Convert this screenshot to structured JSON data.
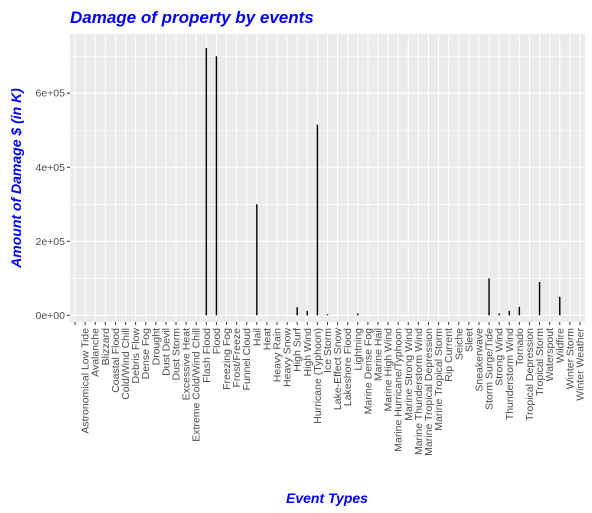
{
  "chart_data": {
    "type": "bar",
    "title": "Damage of property by events",
    "xlabel": "Event Types",
    "ylabel": "Amount of Damage $ (in K)",
    "ylim": [
      -18000,
      760000
    ],
    "yticks": [
      0,
      200000,
      400000,
      600000
    ],
    "ytick_labels": [
      "0e+00",
      "2e+05",
      "4e+05",
      "6e+05"
    ],
    "grid": true,
    "colors": {
      "title": "#0000ff",
      "bar": "#000000",
      "panel": "#ebebeb",
      "grid": "#ffffff"
    },
    "categories": [
      "",
      "Astronomical Low Tide",
      "Avalanche",
      "Blizzard",
      "Coastal Flood",
      "Cold/Wind Chill",
      "Debris Flow",
      "Dense Fog",
      "Drought",
      "Dust Devil",
      "Dust Storm",
      "Excessive Heat",
      "Extreme Cold/Wind Chill",
      "Flash Flood",
      "Flood",
      "Freezing Fog",
      "Frost/Freeze",
      "Funnel Cloud",
      "Hail",
      "Heat",
      "Heavy Rain",
      "Heavy Snow",
      "High Surf",
      "High Wind",
      "Hurricane (Typhoon)",
      "Ice Storm",
      "Lake-Effect Snow",
      "Lakeshore Flood",
      "Lightning",
      "Marine Dense Fog",
      "Marine Hail",
      "Marine High Wind",
      "Marine Hurricane/Typhoon",
      "Marine Strong Wind",
      "Marine Thunderstorm Wind",
      "Marine Tropical Depression",
      "Marine Tropical Storm",
      "Rip Current",
      "Seiche",
      "Sleet",
      "Sneakerwave",
      "Storm Surge/Tide",
      "Strong Wind",
      "Thunderstorm Wind",
      "Tornado",
      "Tropical Depression",
      "Tropical Storm",
      "Waterspout",
      "Wildfire",
      "Winter Storm",
      "Winter Weather"
    ],
    "values": [
      0,
      0,
      0,
      0,
      0,
      0,
      0,
      0,
      0,
      0,
      0,
      0,
      0,
      722000,
      700000,
      0,
      0,
      0,
      300000,
      0,
      0,
      0,
      22000,
      12000,
      515000,
      3000,
      0,
      0,
      5000,
      0,
      0,
      0,
      0,
      0,
      0,
      0,
      0,
      0,
      0,
      0,
      0,
      100000,
      5000,
      12000,
      23000,
      0,
      90000,
      0,
      50000,
      0,
      0
    ]
  }
}
